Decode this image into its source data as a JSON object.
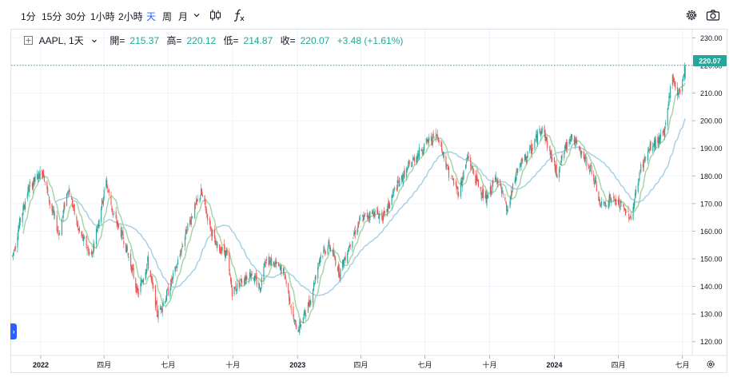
{
  "toolbar": {
    "intervals": [
      "1分",
      "15分",
      "30分",
      "1小時",
      "2小時",
      "天",
      "周",
      "月"
    ],
    "active_interval": "天",
    "dropdown_icon": "chevron-down-icon",
    "chart_type_icon": "candlestick-icon",
    "indicators_icon": "function-icon",
    "settings_icon": "gear-icon",
    "screenshot_icon": "camera-icon"
  },
  "legend": {
    "symbol": "AAPL, 1天",
    "open_label": "開=",
    "open": "215.37",
    "high_label": "高=",
    "high": "220.12",
    "low_label": "低=",
    "low": "214.87",
    "close_label": "收=",
    "close": "220.07",
    "change": "+3.48 (+1.61%)"
  },
  "colors": {
    "up": "#26a69a",
    "down": "#ef5350",
    "ma_short": "#a5d6a7",
    "ma_long": "#a8d0e6",
    "accent": "#2962ff",
    "last_price_bg": "#26a69a"
  },
  "chart_data": {
    "type": "candlestick",
    "title": "",
    "xlabel": "",
    "ylabel": "",
    "ylim": [
      115,
      233
    ],
    "yticks": [
      120,
      130,
      140,
      150,
      160,
      170,
      180,
      190,
      200,
      210,
      220,
      230
    ],
    "ytick_labels": [
      "120.00",
      "130.00",
      "140.00",
      "150.00",
      "160.00",
      "170.00",
      "180.00",
      "190.00",
      "200.00",
      "210.00",
      "220.00",
      "230.00"
    ],
    "xtick_labels": [
      "2022",
      "四月",
      "七月",
      "十月",
      "2023",
      "四月",
      "七月",
      "十月",
      "2024",
      "四月",
      "七月"
    ],
    "xtick_dates": [
      "2022-01-01",
      "2022-04-01",
      "2022-07-01",
      "2022-10-01",
      "2023-01-01",
      "2023-04-01",
      "2023-07-01",
      "2023-10-01",
      "2024-01-01",
      "2024-04-01",
      "2024-07-01"
    ],
    "xlim": [
      "2021-11-20",
      "2024-07-15"
    ],
    "last_price": 220.07,
    "last_price_label": "220.07",
    "grid": true,
    "price_path": [
      [
        "2021-11-22",
        151
      ],
      [
        "2021-12-02",
        163
      ],
      [
        "2021-12-14",
        175
      ],
      [
        "2021-12-28",
        180
      ],
      [
        "2022-01-04",
        182
      ],
      [
        "2022-01-12",
        172
      ],
      [
        "2022-01-27",
        159
      ],
      [
        "2022-02-09",
        176
      ],
      [
        "2022-02-24",
        160
      ],
      [
        "2022-03-14",
        151
      ],
      [
        "2022-04-04",
        178
      ],
      [
        "2022-04-14",
        166
      ],
      [
        "2022-04-29",
        157
      ],
      [
        "2022-05-11",
        146
      ],
      [
        "2022-05-19",
        137
      ],
      [
        "2022-06-02",
        149
      ],
      [
        "2022-06-16",
        130
      ],
      [
        "2022-07-01",
        138
      ],
      [
        "2022-07-14",
        148
      ],
      [
        "2022-07-29",
        162
      ],
      [
        "2022-08-17",
        174
      ],
      [
        "2022-09-06",
        155
      ],
      [
        "2022-09-22",
        152
      ],
      [
        "2022-09-30",
        138
      ],
      [
        "2022-10-13",
        142
      ],
      [
        "2022-10-27",
        145
      ],
      [
        "2022-11-09",
        139
      ],
      [
        "2022-11-15",
        150
      ],
      [
        "2022-11-30",
        148
      ],
      [
        "2022-12-13",
        145
      ],
      [
        "2022-12-28",
        126
      ],
      [
        "2023-01-03",
        125
      ],
      [
        "2023-01-19",
        135
      ],
      [
        "2023-02-02",
        151
      ],
      [
        "2023-02-15",
        155
      ],
      [
        "2023-03-02",
        145
      ],
      [
        "2023-03-17",
        156
      ],
      [
        "2023-03-31",
        164
      ],
      [
        "2023-04-19",
        167
      ],
      [
        "2023-05-04",
        165
      ],
      [
        "2023-05-19",
        175
      ],
      [
        "2023-06-15",
        186
      ],
      [
        "2023-07-03",
        192
      ],
      [
        "2023-07-19",
        195
      ],
      [
        "2023-08-04",
        181
      ],
      [
        "2023-08-18",
        174
      ],
      [
        "2023-08-31",
        187
      ],
      [
        "2023-09-11",
        179
      ],
      [
        "2023-09-26",
        171
      ],
      [
        "2023-10-11",
        180
      ],
      [
        "2023-10-26",
        167
      ],
      [
        "2023-11-09",
        182
      ],
      [
        "2023-11-30",
        190
      ],
      [
        "2023-12-14",
        198
      ],
      [
        "2024-01-04",
        181
      ],
      [
        "2024-01-24",
        195
      ],
      [
        "2024-02-06",
        189
      ],
      [
        "2024-02-23",
        182
      ],
      [
        "2024-03-07",
        169
      ],
      [
        "2024-03-21",
        172
      ],
      [
        "2024-04-05",
        169
      ],
      [
        "2024-04-19",
        165
      ],
      [
        "2024-05-03",
        183
      ],
      [
        "2024-05-16",
        190
      ],
      [
        "2024-06-05",
        195
      ],
      [
        "2024-06-11",
        207
      ],
      [
        "2024-06-17",
        216
      ],
      [
        "2024-06-25",
        209
      ],
      [
        "2024-07-02",
        216
      ],
      [
        "2024-07-05",
        220
      ]
    ]
  }
}
